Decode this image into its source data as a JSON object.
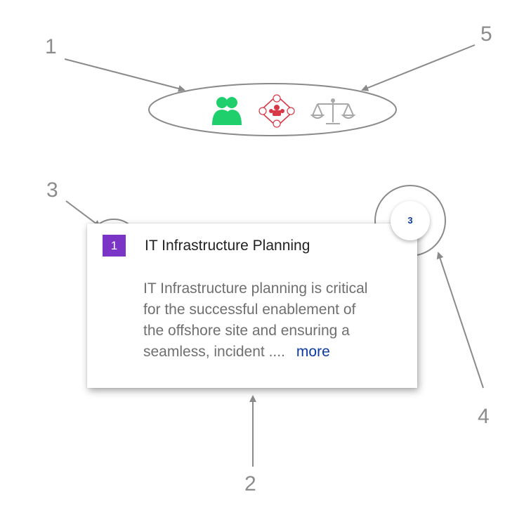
{
  "callouts": {
    "one": "1",
    "two": "2",
    "three": "3",
    "four": "4",
    "five": "5"
  },
  "icons": {
    "people": "people-icon",
    "network": "network-icon",
    "scale": "scale-icon",
    "people_color": "#1fcf6c",
    "network_color": "#d63a48",
    "scale_color": "#a8a8a8"
  },
  "card": {
    "badge": "1",
    "title": "IT Infrastructure Planning",
    "body_lines": [
      "IT Infrastructure planning is critical",
      "for the successful enablement of",
      "the offshore site and ensuring a",
      "seamless, incident ...."
    ],
    "more": "more",
    "count": "3",
    "badge_color": "#7b35c6",
    "link_color": "#0b3aa5"
  }
}
